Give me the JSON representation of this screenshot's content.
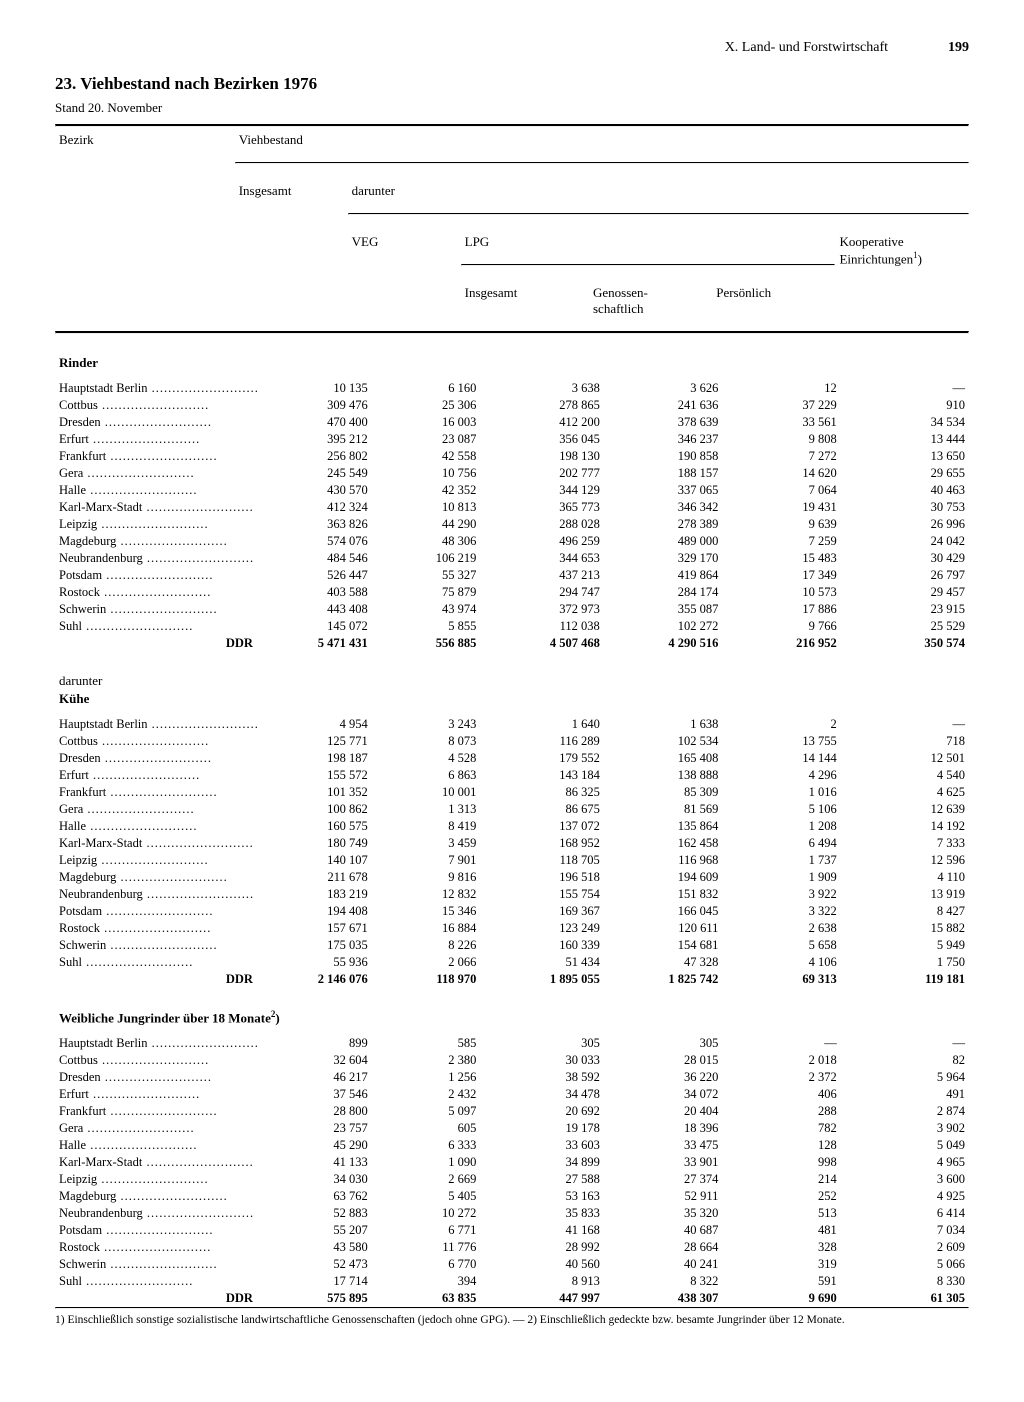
{
  "chapter": "X. Land- und Forstwirtschaft",
  "page_number": "199",
  "title": "23. Viehbestand nach Bezirken 1976",
  "subtitle": "Stand 20. November",
  "columns": {
    "bezirk": "Bezirk",
    "viehbestand": "Viehbestand",
    "insgesamt": "Insgesamt",
    "darunter": "darunter",
    "veg": "VEG",
    "lpg": "LPG",
    "lpg_insgesamt": "Insgesamt",
    "genossen": "Genossen-\nschaftlich",
    "persoenlich": "Persönlich",
    "koop": "Kooperative\nEinrichtungen",
    "koop_sup": "1",
    "sup_close": ")"
  },
  "sections": [
    {
      "heading": "Rinder",
      "rows": [
        {
          "label": "Hauptstadt Berlin",
          "c": [
            "10 135",
            "6 160",
            "3 638",
            "3 626",
            "12",
            "—"
          ]
        },
        {
          "label": "Cottbus",
          "c": [
            "309 476",
            "25 306",
            "278 865",
            "241 636",
            "37 229",
            "910"
          ]
        },
        {
          "label": "Dresden",
          "c": [
            "470 400",
            "16 003",
            "412 200",
            "378 639",
            "33 561",
            "34 534"
          ]
        },
        {
          "label": "Erfurt",
          "c": [
            "395 212",
            "23 087",
            "356 045",
            "346 237",
            "9 808",
            "13 444"
          ]
        },
        {
          "label": "Frankfurt",
          "c": [
            "256 802",
            "42 558",
            "198 130",
            "190 858",
            "7 272",
            "13 650"
          ]
        },
        {
          "label": "Gera",
          "c": [
            "245 549",
            "10 756",
            "202 777",
            "188 157",
            "14 620",
            "29 655"
          ]
        },
        {
          "label": "Halle",
          "c": [
            "430 570",
            "42 352",
            "344 129",
            "337 065",
            "7 064",
            "40 463"
          ]
        },
        {
          "label": "Karl-Marx-Stadt",
          "c": [
            "412 324",
            "10 813",
            "365 773",
            "346 342",
            "19 431",
            "30 753"
          ]
        },
        {
          "label": "Leipzig",
          "c": [
            "363 826",
            "44 290",
            "288 028",
            "278 389",
            "9 639",
            "26 996"
          ]
        },
        {
          "label": "Magdeburg",
          "c": [
            "574 076",
            "48 306",
            "496 259",
            "489 000",
            "7 259",
            "24 042"
          ]
        },
        {
          "label": "Neubrandenburg",
          "c": [
            "484 546",
            "106 219",
            "344 653",
            "329 170",
            "15 483",
            "30 429"
          ]
        },
        {
          "label": "Potsdam",
          "c": [
            "526 447",
            "55 327",
            "437 213",
            "419 864",
            "17 349",
            "26 797"
          ]
        },
        {
          "label": "Rostock",
          "c": [
            "403 588",
            "75 879",
            "294 747",
            "284 174",
            "10 573",
            "29 457"
          ]
        },
        {
          "label": "Schwerin",
          "c": [
            "443 408",
            "43 974",
            "372 973",
            "355 087",
            "17 886",
            "23 915"
          ]
        },
        {
          "label": "Suhl",
          "c": [
            "145 072",
            "5 855",
            "112 038",
            "102 272",
            "9 766",
            "25 529"
          ]
        }
      ],
      "total": {
        "label": "DDR",
        "c": [
          "5 471 431",
          "556 885",
          "4 507 468",
          "4 290 516",
          "216 952",
          "350 574"
        ]
      }
    },
    {
      "preface": "darunter",
      "heading": "Kühe",
      "rows": [
        {
          "label": "Hauptstadt Berlin",
          "c": [
            "4 954",
            "3 243",
            "1 640",
            "1 638",
            "2",
            "—"
          ]
        },
        {
          "label": "Cottbus",
          "c": [
            "125 771",
            "8 073",
            "116 289",
            "102 534",
            "13 755",
            "718"
          ]
        },
        {
          "label": "Dresden",
          "c": [
            "198 187",
            "4 528",
            "179 552",
            "165 408",
            "14 144",
            "12 501"
          ]
        },
        {
          "label": "Erfurt",
          "c": [
            "155 572",
            "6 863",
            "143 184",
            "138 888",
            "4 296",
            "4 540"
          ]
        },
        {
          "label": "Frankfurt",
          "c": [
            "101 352",
            "10 001",
            "86 325",
            "85 309",
            "1 016",
            "4 625"
          ]
        },
        {
          "label": "Gera",
          "c": [
            "100 862",
            "1 313",
            "86 675",
            "81 569",
            "5 106",
            "12 639"
          ]
        },
        {
          "label": "Halle",
          "c": [
            "160 575",
            "8 419",
            "137 072",
            "135 864",
            "1 208",
            "14 192"
          ]
        },
        {
          "label": "Karl-Marx-Stadt",
          "c": [
            "180 749",
            "3 459",
            "168 952",
            "162 458",
            "6 494",
            "7 333"
          ]
        },
        {
          "label": "Leipzig",
          "c": [
            "140 107",
            "7 901",
            "118 705",
            "116 968",
            "1 737",
            "12 596"
          ]
        },
        {
          "label": "Magdeburg",
          "c": [
            "211 678",
            "9 816",
            "196 518",
            "194 609",
            "1 909",
            "4 110"
          ]
        },
        {
          "label": "Neubrandenburg",
          "c": [
            "183 219",
            "12 832",
            "155 754",
            "151 832",
            "3 922",
            "13 919"
          ]
        },
        {
          "label": "Potsdam",
          "c": [
            "194 408",
            "15 346",
            "169 367",
            "166 045",
            "3 322",
            "8 427"
          ]
        },
        {
          "label": "Rostock",
          "c": [
            "157 671",
            "16 884",
            "123 249",
            "120 611",
            "2 638",
            "15 882"
          ]
        },
        {
          "label": "Schwerin",
          "c": [
            "175 035",
            "8 226",
            "160 339",
            "154 681",
            "5 658",
            "5 949"
          ]
        },
        {
          "label": "Suhl",
          "c": [
            "55 936",
            "2 066",
            "51 434",
            "47 328",
            "4 106",
            "1 750"
          ]
        }
      ],
      "total": {
        "label": "DDR",
        "c": [
          "2 146 076",
          "118 970",
          "1 895 055",
          "1 825 742",
          "69 313",
          "119 181"
        ]
      }
    },
    {
      "heading": "Weibliche Jungrinder über 18 Monate",
      "heading_sup": "2",
      "rows": [
        {
          "label": "Hauptstadt Berlin",
          "c": [
            "899",
            "585",
            "305",
            "305",
            "—",
            "—"
          ]
        },
        {
          "label": "Cottbus",
          "c": [
            "32 604",
            "2 380",
            "30 033",
            "28 015",
            "2 018",
            "82"
          ]
        },
        {
          "label": "Dresden",
          "c": [
            "46 217",
            "1 256",
            "38 592",
            "36 220",
            "2 372",
            "5 964"
          ]
        },
        {
          "label": "Erfurt",
          "c": [
            "37 546",
            "2 432",
            "34 478",
            "34 072",
            "406",
            "491"
          ]
        },
        {
          "label": "Frankfurt",
          "c": [
            "28 800",
            "5 097",
            "20 692",
            "20 404",
            "288",
            "2 874"
          ]
        },
        {
          "label": "Gera",
          "c": [
            "23 757",
            "605",
            "19 178",
            "18 396",
            "782",
            "3 902"
          ]
        },
        {
          "label": "Halle",
          "c": [
            "45 290",
            "6 333",
            "33 603",
            "33 475",
            "128",
            "5 049"
          ]
        },
        {
          "label": "Karl-Marx-Stadt",
          "c": [
            "41 133",
            "1 090",
            "34 899",
            "33 901",
            "998",
            "4 965"
          ]
        },
        {
          "label": "Leipzig",
          "c": [
            "34 030",
            "2 669",
            "27 588",
            "27 374",
            "214",
            "3 600"
          ]
        },
        {
          "label": "Magdeburg",
          "c": [
            "63 762",
            "5 405",
            "53 163",
            "52 911",
            "252",
            "4 925"
          ]
        },
        {
          "label": "Neubrandenburg",
          "c": [
            "52 883",
            "10 272",
            "35 833",
            "35 320",
            "513",
            "6 414"
          ]
        },
        {
          "label": "Potsdam",
          "c": [
            "55 207",
            "6 771",
            "41 168",
            "40 687",
            "481",
            "7 034"
          ]
        },
        {
          "label": "Rostock",
          "c": [
            "43 580",
            "11 776",
            "28 992",
            "28 664",
            "328",
            "2 609"
          ]
        },
        {
          "label": "Schwerin",
          "c": [
            "52 473",
            "6 770",
            "40 560",
            "40 241",
            "319",
            "5 066"
          ]
        },
        {
          "label": "Suhl",
          "c": [
            "17 714",
            "394",
            "8 913",
            "8 322",
            "591",
            "8 330"
          ]
        }
      ],
      "total": {
        "label": "DDR",
        "c": [
          "575 895",
          "63 835",
          "447 997",
          "438 307",
          "9 690",
          "61 305"
        ]
      }
    }
  ],
  "footnote": "1) Einschließlich sonstige sozialistische landwirtschaftliche Genossenschaften (jedoch ohne GPG). — 2) Einschließlich gedeckte bzw. besamte Jungrinder über 12 Monate.",
  "colwidths": [
    "175px",
    "110px",
    "110px",
    "125px",
    "120px",
    "120px",
    "130px"
  ]
}
